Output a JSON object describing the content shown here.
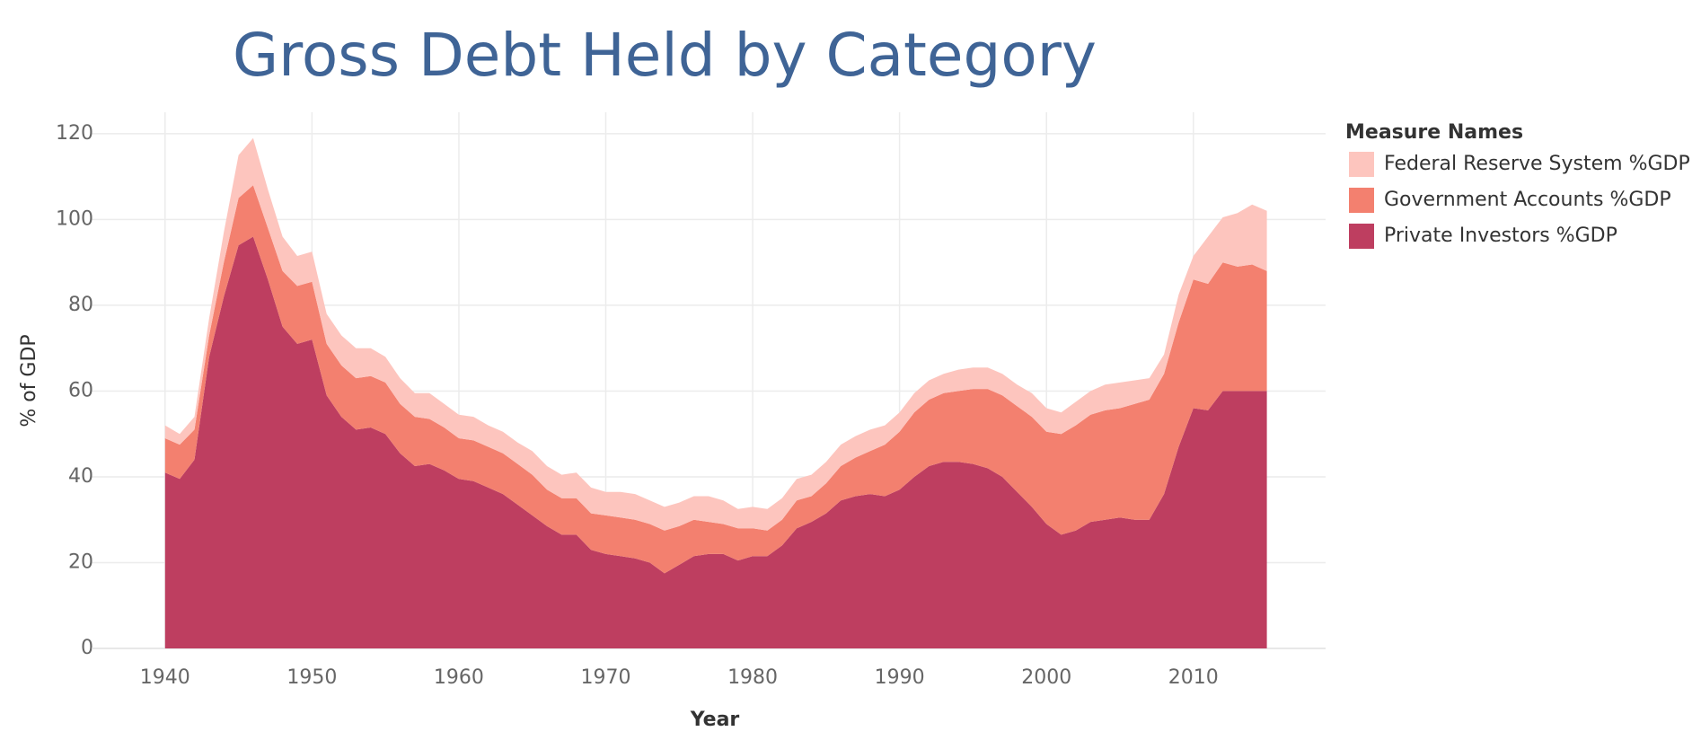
{
  "chart_data": {
    "type": "stacked_area",
    "title": "Gross Debt  Held by Category",
    "x_label": "Year",
    "y_label": "% of GDP",
    "legend_title": "Measure Names",
    "legend": "right",
    "grid": true,
    "x": [
      1940,
      1941,
      1942,
      1943,
      1944,
      1945,
      1946,
      1947,
      1948,
      1949,
      1950,
      1951,
      1952,
      1953,
      1954,
      1955,
      1956,
      1957,
      1958,
      1959,
      1960,
      1961,
      1962,
      1963,
      1964,
      1965,
      1966,
      1967,
      1968,
      1969,
      1970,
      1971,
      1972,
      1973,
      1974,
      1975,
      1976,
      1977,
      1978,
      1979,
      1980,
      1981,
      1982,
      1983,
      1984,
      1985,
      1986,
      1987,
      1988,
      1989,
      1990,
      1991,
      1992,
      1993,
      1994,
      1995,
      1996,
      1997,
      1998,
      1999,
      2000,
      2001,
      2002,
      2003,
      2004,
      2005,
      2006,
      2007,
      2008,
      2009,
      2010,
      2011,
      2012,
      2013,
      2014,
      2015
    ],
    "xlim": [
      1935,
      2019
    ],
    "xticks": [
      1940,
      1950,
      1960,
      1970,
      1980,
      1990,
      2000,
      2010
    ],
    "ylim": [
      0,
      125
    ],
    "yticks": [
      0,
      20,
      40,
      60,
      80,
      100,
      120
    ],
    "series": [
      {
        "name": "Federal Reserve System %GDP",
        "color": "#fdc5be",
        "values": [
          3,
          2.5,
          3,
          4,
          7,
          10,
          11,
          9,
          8,
          7,
          7,
          7,
          7,
          7,
          6.5,
          6,
          6,
          5.5,
          6,
          5.5,
          5.5,
          5.5,
          5,
          5,
          5,
          5.5,
          5.5,
          5.5,
          6,
          6,
          5.5,
          6,
          6,
          5.5,
          5.5,
          5.5,
          5.5,
          6,
          5.5,
          4.5,
          5,
          5,
          5,
          5,
          5,
          5,
          5,
          5,
          5,
          4.5,
          4.5,
          4.5,
          4.5,
          4.5,
          5,
          5,
          5,
          5,
          5,
          5.5,
          5.5,
          5,
          5.5,
          5.5,
          6,
          6,
          5.5,
          5,
          4.5,
          6.5,
          5.5,
          11,
          10.5,
          12.5,
          14,
          14
        ]
      },
      {
        "name": "Government Accounts %GDP",
        "color": "#f3806f",
        "values": [
          8,
          8,
          7,
          5,
          8,
          11,
          12,
          12,
          13,
          13.5,
          13.5,
          12,
          12,
          12,
          12,
          12,
          11.5,
          11.5,
          10.5,
          10,
          9.5,
          9.5,
          9.5,
          9.5,
          9.5,
          9.5,
          8.5,
          8.5,
          8.5,
          8.5,
          9,
          9,
          9,
          9,
          10,
          9,
          8.5,
          7.5,
          7,
          7.5,
          6.5,
          6,
          6,
          6.5,
          6,
          7,
          8,
          9,
          10,
          12,
          13.5,
          15,
          15.5,
          16,
          16.5,
          17.5,
          18.5,
          19,
          20,
          21,
          21.5,
          23.5,
          24.5,
          25,
          25.5,
          25.5,
          27,
          28,
          28,
          29,
          30,
          29.5,
          30,
          29,
          29.5,
          28
        ]
      },
      {
        "name": "Private Investors %GDP",
        "color": "#be3e60",
        "values": [
          41,
          39.5,
          44,
          68,
          82,
          94,
          96,
          86,
          75,
          71,
          72,
          59,
          54,
          51,
          51.5,
          50,
          45.5,
          42.5,
          43,
          41.5,
          39.5,
          39,
          37.5,
          36,
          33.5,
          31,
          28.5,
          26.5,
          26.5,
          23,
          22,
          21.5,
          21,
          20,
          17.5,
          19.5,
          21.5,
          22,
          22,
          20.5,
          21.5,
          21.5,
          24,
          28,
          29.5,
          31.5,
          34.5,
          35.5,
          36,
          35.5,
          37,
          40,
          42.5,
          43.5,
          43.5,
          43,
          42,
          40,
          36.5,
          33,
          29,
          26.5,
          27.5,
          29.5,
          30,
          30.5,
          30,
          30,
          36,
          47,
          56,
          55.5,
          60,
          60,
          60,
          60
        ]
      }
    ]
  }
}
